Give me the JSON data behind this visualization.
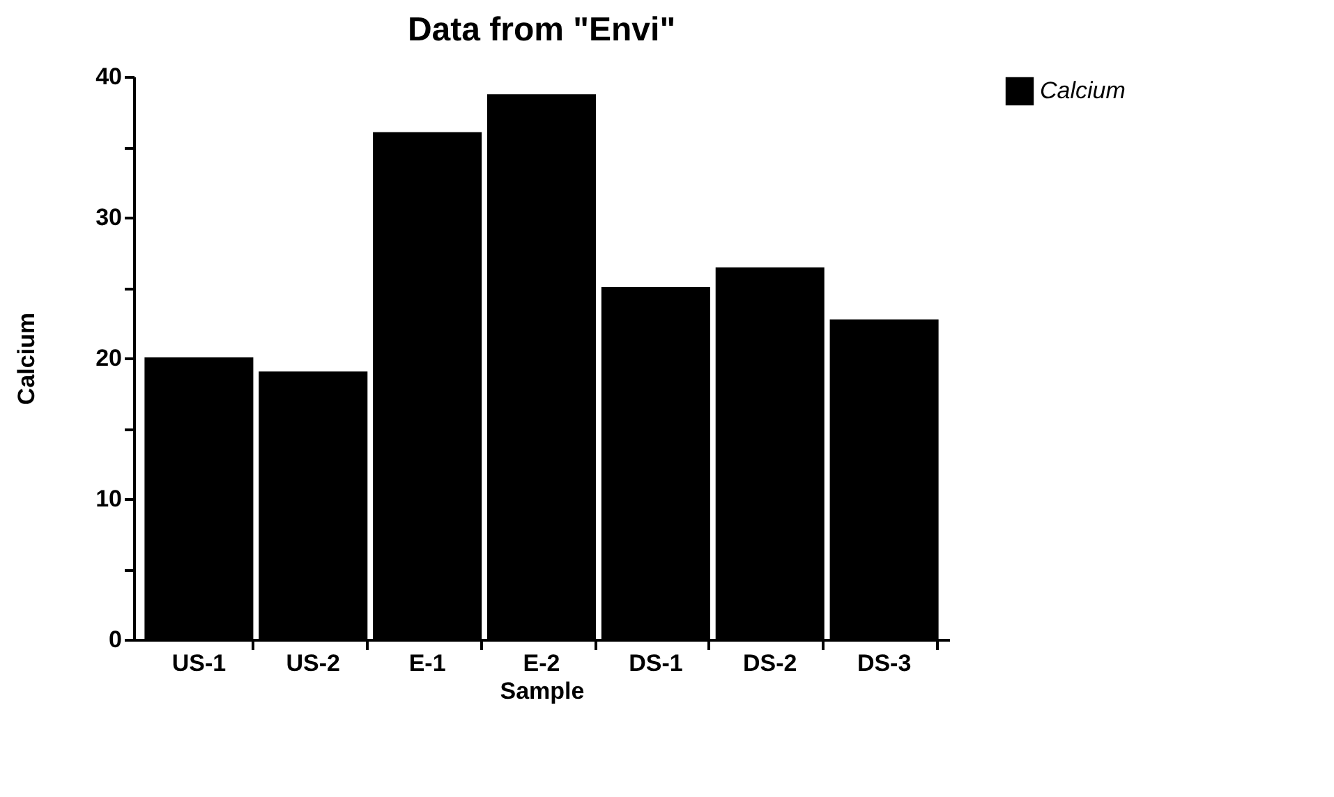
{
  "chart_data": {
    "type": "bar",
    "title": "Data from \"Envi\"",
    "xlabel": "Sample",
    "ylabel": "Calcium",
    "categories": [
      "US-1",
      "US-2",
      "E-1",
      "E-2",
      "DS-1",
      "DS-2",
      "DS-3"
    ],
    "series": [
      {
        "name": "Calcium",
        "color": "#000000",
        "values": [
          20.0,
          19.0,
          36.0,
          38.7,
          25.0,
          26.4,
          22.7
        ]
      }
    ],
    "ylim": [
      0,
      40
    ],
    "yticks": [
      0,
      {
        "value": 5,
        "label": null
      },
      10,
      {
        "value": 15,
        "label": null
      },
      20,
      {
        "value": 25,
        "label": null
      },
      30,
      {
        "value": 35,
        "label": null
      },
      40
    ],
    "grid": false,
    "legend": "right"
  }
}
